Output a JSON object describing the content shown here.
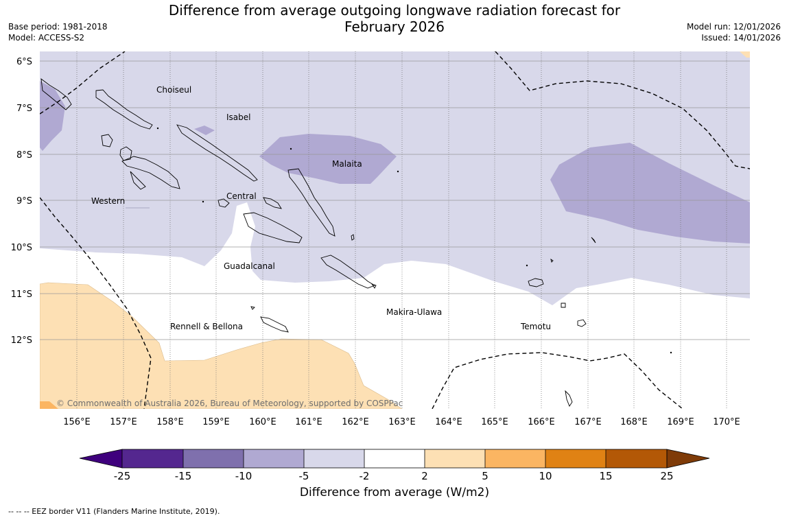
{
  "header": {
    "title_line1": "Difference from average outgoing longwave radiation forecast for",
    "title_line2": "February 2026",
    "base_period": "Base period: 1981-2018",
    "model": "Model: ACCESS-S2",
    "model_run": "Model run: 12/01/2026",
    "issued": "Issued: 14/01/2026"
  },
  "map": {
    "lon_labels": [
      "156°E",
      "157°E",
      "158°E",
      "159°E",
      "160°E",
      "161°E",
      "162°E",
      "163°E",
      "164°E",
      "165°E",
      "166°E",
      "167°E",
      "168°E",
      "169°E",
      "170°E"
    ],
    "lat_labels": [
      "6°S",
      "7°S",
      "8°S",
      "9°S",
      "10°S",
      "11°S",
      "12°S"
    ],
    "regions": [
      "Choiseul",
      "Isabel",
      "Malaita",
      "Western",
      "Central",
      "Guadalcanal",
      "Makira-Ulawa",
      "Rennell & Bellona",
      "Temotu"
    ],
    "copyright": "© Commonwealth of Australia 2026, Bureau of Meteorology, supported by COSPPac"
  },
  "colorbar": {
    "ticks": [
      "-25",
      "-15",
      "-10",
      "-5",
      "-2",
      "2",
      "5",
      "10",
      "15",
      "25"
    ],
    "colors": [
      "#54278f",
      "#54278f",
      "#7f70ad",
      "#b0a9d2",
      "#d8d8ea",
      "#ffffff",
      "#fde0b4",
      "#fbb562",
      "#e08214",
      "#b35806",
      "#7f3b08"
    ],
    "label": "Difference from average (W/m2)"
  },
  "footnote": "--  --  -- EEZ border V11 (Flanders Marine Institute, 2019)."
}
